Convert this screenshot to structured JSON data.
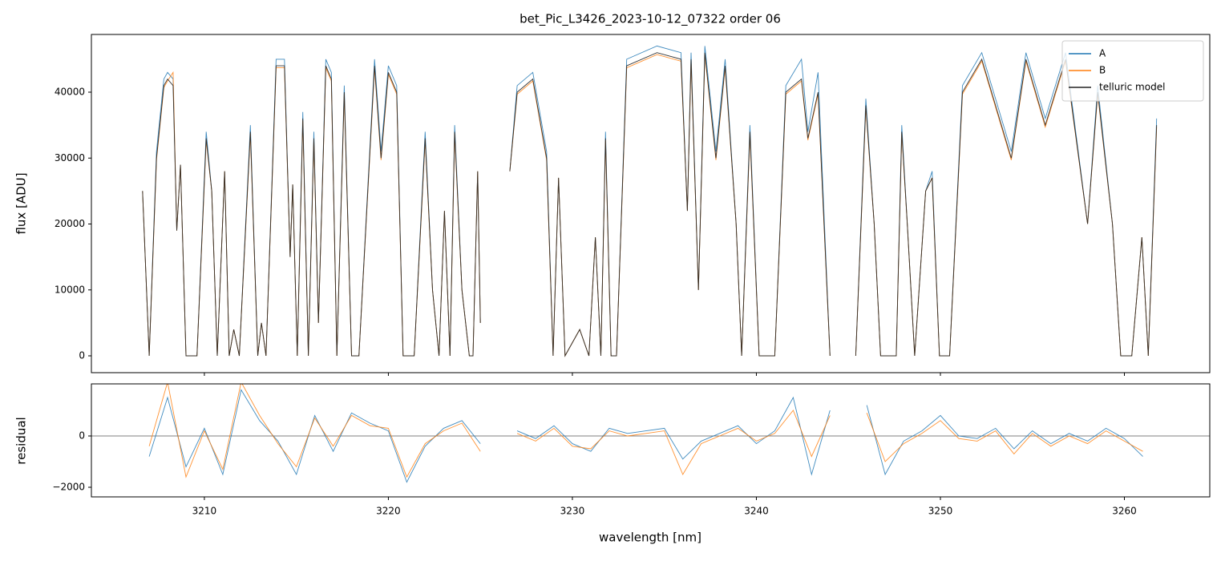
{
  "chart_data": [
    {
      "type": "line",
      "title": "bet_Pic_L3426_2023-10-12_07322  order 06",
      "ylabel": "flux [ADU]",
      "xlim": [
        3203.86,
        3264.64
      ],
      "ylim": [
        -2553,
        48754
      ],
      "xticks": [
        3210,
        3220,
        3230,
        3240,
        3250,
        3260
      ],
      "yticks": [
        0,
        10000,
        20000,
        30000,
        40000
      ],
      "legend": "upper right",
      "x": [
        3206.64,
        3207.0,
        3207.4,
        3207.8,
        3208.0,
        3208.3,
        3208.5,
        3208.7,
        3209.0,
        3209.6,
        3210.1,
        3210.4,
        3210.7,
        3211.1,
        3211.35,
        3211.6,
        3211.9,
        3212.5,
        3212.9,
        3213.1,
        3213.35,
        3213.9,
        3214.35,
        3214.66,
        3214.8,
        3215.05,
        3215.35,
        3215.65,
        3215.95,
        3216.2,
        3216.6,
        3216.9,
        3217.2,
        3217.6,
        3218.0,
        3218.4,
        3219.25,
        3219.6,
        3220.0,
        3220.45,
        3220.8,
        3221.4,
        3222.0,
        3222.4,
        3222.75,
        3223.05,
        3223.35,
        3223.6,
        3224.0,
        3224.4,
        3224.6,
        3224.85,
        3225.0,
        3225.8,
        3226.6,
        3227.0,
        3227.85,
        3228.6,
        3228.95,
        3229.25,
        3229.6,
        3230.4,
        3230.9,
        3231.25,
        3231.55,
        3231.8,
        3232.1,
        3232.4,
        3232.95,
        3234.6,
        3235.9,
        3236.25,
        3236.45,
        3236.85,
        3237.2,
        3237.8,
        3238.3,
        3238.9,
        3239.2,
        3239.65,
        3240.15,
        3241.0,
        3241.6,
        3242.45,
        3242.8,
        3243.35,
        3244.0,
        3244.6,
        3245.4,
        3245.95,
        3246.4,
        3246.75,
        3247.6,
        3247.9,
        3248.2,
        3248.6,
        3249.2,
        3249.55,
        3249.95,
        3250.5,
        3251.2,
        3252.25,
        3253.85,
        3254.65,
        3255.7,
        3256.8,
        3258.0,
        3258.55,
        3259.35,
        3259.8,
        3260.4,
        3260.95,
        3261.3,
        3261.75
      ],
      "series": [
        {
          "name": "A",
          "color": "#1f77b4",
          "values": [
            25000,
            0,
            31000,
            42000,
            43000,
            42000,
            19000,
            29000,
            0,
            0,
            34000,
            25000,
            0,
            28000,
            0,
            4000,
            0,
            35000,
            0,
            5000,
            0,
            45000,
            45000,
            15000,
            26000,
            0,
            37000,
            0,
            34000,
            5000,
            45000,
            43000,
            0,
            41000,
            0,
            0,
            45000,
            31000,
            44000,
            41000,
            0,
            0,
            34000,
            10000,
            0,
            22000,
            0,
            35000,
            10000,
            0,
            0,
            28000,
            5000,
            null,
            28000,
            41000,
            43000,
            31000,
            0,
            27000,
            0,
            4000,
            0,
            18000,
            0,
            34000,
            0,
            0,
            45000,
            47000,
            46000,
            22000,
            46000,
            10000,
            47000,
            31000,
            45000,
            20000,
            0,
            35000,
            0,
            0,
            41000,
            45000,
            34000,
            43000,
            0,
            null,
            0,
            39000,
            20000,
            0,
            0,
            35000,
            20000,
            0,
            25000,
            28000,
            0,
            0,
            41000,
            46000,
            31000,
            46000,
            36000,
            46000,
            20000,
            41000,
            20000,
            0,
            0,
            18000,
            0,
            36000
          ]
        },
        {
          "name": "B",
          "color": "#ff7f0e",
          "values": [
            25000,
            0,
            29700,
            40700,
            41700,
            43000,
            19000,
            29000,
            0,
            0,
            32700,
            25000,
            0,
            28000,
            0,
            4000,
            0,
            33700,
            0,
            5000,
            0,
            43700,
            43700,
            15000,
            26000,
            0,
            35700,
            0,
            32700,
            5000,
            43700,
            41700,
            0,
            39700,
            0,
            0,
            43700,
            29700,
            42700,
            39700,
            0,
            0,
            32700,
            10000,
            0,
            22000,
            0,
            33700,
            10000,
            0,
            0,
            28000,
            5000,
            null,
            28000,
            39700,
            41700,
            29700,
            0,
            27000,
            0,
            4000,
            0,
            18000,
            0,
            32700,
            0,
            0,
            43700,
            45700,
            44700,
            22000,
            44700,
            10000,
            45700,
            29700,
            43700,
            20000,
            0,
            33700,
            0,
            0,
            39700,
            41700,
            32700,
            39700,
            0,
            null,
            0,
            37700,
            20000,
            0,
            0,
            33700,
            20000,
            0,
            25000,
            27000,
            0,
            0,
            39700,
            44700,
            29700,
            44700,
            34700,
            44700,
            20000,
            39700,
            20000,
            0,
            0,
            18000,
            0,
            34700
          ]
        },
        {
          "name": "telluric model",
          "color": "#222222",
          "values": [
            25000,
            0,
            30000,
            41000,
            42000,
            41000,
            19000,
            29000,
            0,
            0,
            33000,
            25000,
            0,
            28000,
            0,
            4000,
            0,
            34000,
            0,
            5000,
            0,
            44000,
            44000,
            15000,
            26000,
            0,
            36000,
            0,
            33000,
            5000,
            44000,
            42000,
            0,
            40000,
            0,
            0,
            44000,
            30000,
            43000,
            40000,
            0,
            0,
            33000,
            10000,
            0,
            22000,
            0,
            34000,
            10000,
            0,
            0,
            28000,
            5000,
            null,
            28000,
            40000,
            42000,
            30000,
            0,
            27000,
            0,
            4000,
            0,
            18000,
            0,
            33000,
            0,
            0,
            44000,
            46000,
            45000,
            22000,
            45000,
            10000,
            46000,
            30000,
            44000,
            20000,
            0,
            34000,
            0,
            0,
            40000,
            42000,
            33000,
            40000,
            0,
            null,
            0,
            38000,
            20000,
            0,
            0,
            34000,
            20000,
            0,
            25000,
            27000,
            0,
            0,
            40000,
            45000,
            30000,
            45000,
            35000,
            45000,
            20000,
            40000,
            20000,
            0,
            0,
            18000,
            0,
            35000
          ]
        }
      ]
    },
    {
      "type": "line",
      "xlabel": "wavelength [nm]",
      "ylabel": "residual",
      "xlim": [
        3203.86,
        3264.64
      ],
      "ylim": [
        -2375,
        2031
      ],
      "xticks": [
        3210,
        3220,
        3230,
        3240,
        3250,
        3260
      ],
      "yticks": [
        {
          "value": -2000,
          "label": "−2000"
        },
        0
      ],
      "hline": 0,
      "x": [
        3207,
        3208,
        3209,
        3210,
        3211,
        3212,
        3213,
        3214,
        3215,
        3216,
        3217,
        3218,
        3219,
        3220,
        3221,
        3222,
        3223,
        3224,
        3225,
        3225.8,
        3227,
        3228,
        3229,
        3230,
        3231,
        3232,
        3233,
        3234,
        3235,
        3236,
        3237,
        3238,
        3239,
        3240,
        3241,
        3242,
        3243,
        3244,
        3244.6,
        3246,
        3247,
        3248,
        3249,
        3250,
        3251,
        3252,
        3253,
        3254,
        3255,
        3256,
        3257,
        3258,
        3259,
        3260,
        3261
      ],
      "series": [
        {
          "color": "#1f77b4",
          "values": [
            -800,
            1500,
            -1200,
            300,
            -1500,
            1800,
            600,
            -200,
            -1500,
            800,
            -600,
            900,
            500,
            200,
            -1800,
            -400,
            300,
            600,
            -300,
            null,
            200,
            -100,
            400,
            -300,
            -600,
            300,
            100,
            200,
            300,
            -900,
            -200,
            100,
            400,
            -300,
            200,
            1500,
            -1500,
            1000,
            null,
            1200,
            -1500,
            -200,
            200,
            800,
            0,
            -100,
            300,
            -500,
            200,
            -300,
            100,
            -200,
            300,
            -100,
            -800
          ]
        },
        {
          "color": "#ff7f0e",
          "values": [
            -400,
            2100,
            -1600,
            200,
            -1300,
            2100,
            800,
            -300,
            -1200,
            700,
            -400,
            800,
            400,
            300,
            -1600,
            -300,
            200,
            500,
            -600,
            null,
            100,
            -200,
            300,
            -400,
            -500,
            200,
            0,
            100,
            200,
            -1500,
            -300,
            0,
            300,
            -200,
            100,
            1000,
            -800,
            800,
            null,
            900,
            -1000,
            -300,
            100,
            600,
            -100,
            -200,
            200,
            -700,
            100,
            -400,
            0,
            -300,
            200,
            -200,
            -600
          ]
        }
      ]
    }
  ]
}
